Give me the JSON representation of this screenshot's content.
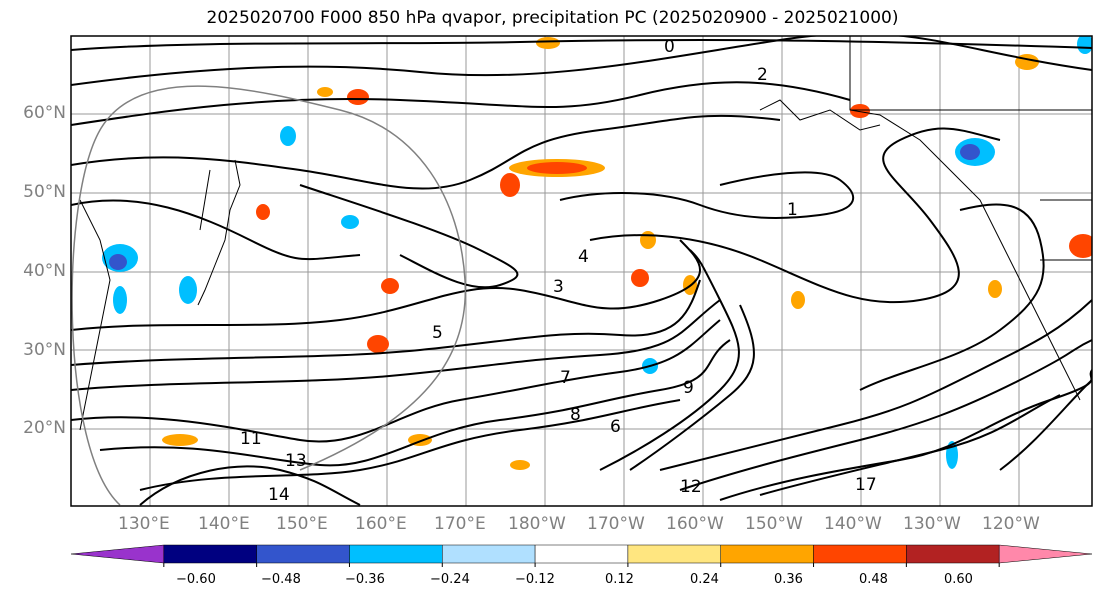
{
  "title": "2025020700 F000 850 hPa qvapor, precipitation PC (2025020900 - 2025021000)",
  "lat_labels": [
    "60°N",
    "50°N",
    "40°N",
    "30°N",
    "20°N"
  ],
  "lon_labels": [
    "130°E",
    "140°E",
    "150°E",
    "160°E",
    "170°E",
    "180°W",
    "170°W",
    "160°W",
    "150°W",
    "140°W",
    "130°W",
    "120°W"
  ],
  "colorbar": {
    "colors": [
      "#9933cc",
      "#000080",
      "#3355cc",
      "#00bfff",
      "#b0e0ff",
      "#ffffff",
      "#ffe680",
      "#ffa500",
      "#ff4500",
      "#b22222",
      "#ff88aa"
    ],
    "ticks": [
      "−0.60",
      "−0.48",
      "−0.36",
      "−0.24",
      "−0.12",
      "0.12",
      "0.24",
      "0.36",
      "0.48",
      "0.60"
    ]
  },
  "contour_labels": [
    "0",
    "2",
    "1",
    "4",
    "5",
    "7",
    "8",
    "9",
    "11",
    "13",
    "14",
    "17",
    "3",
    "6",
    "12"
  ]
}
